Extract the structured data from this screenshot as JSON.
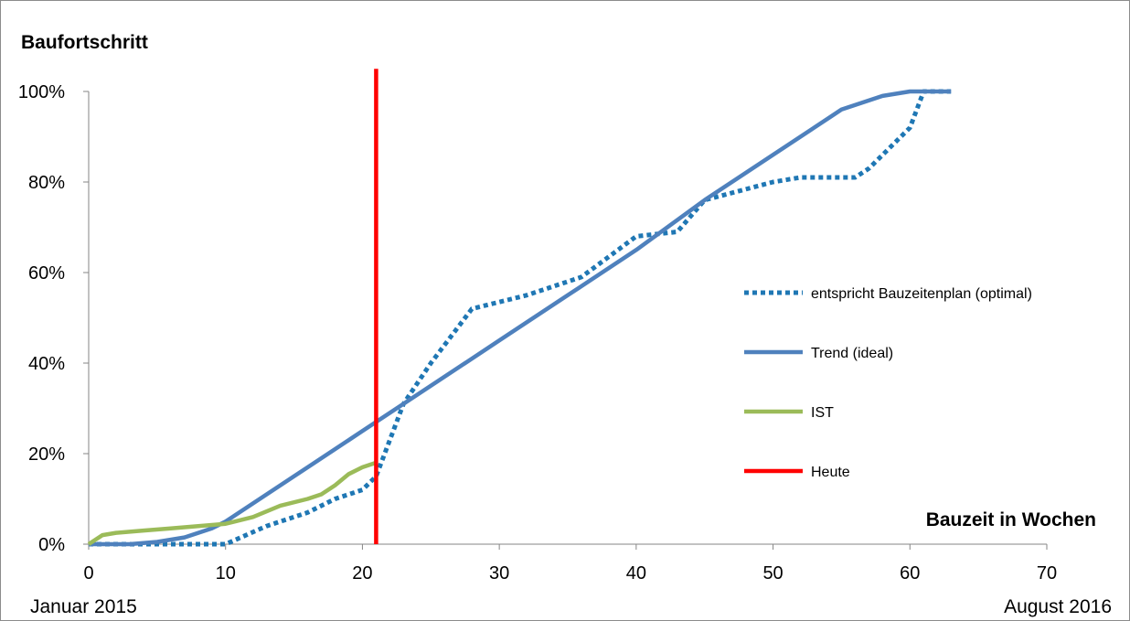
{
  "chart_data": {
    "type": "line",
    "title": "Baufortschritt",
    "xlabel": "Bauzeit in Wochen",
    "ylabel": "",
    "xlim": [
      0,
      70
    ],
    "ylim": [
      0,
      1
    ],
    "x_ticks": [
      0,
      10,
      20,
      30,
      40,
      50,
      60,
      70
    ],
    "y_ticks": [
      0,
      0.2,
      0.4,
      0.6,
      0.8,
      1.0
    ],
    "y_tick_labels": [
      "0%",
      "20%",
      "40%",
      "60%",
      "80%",
      "100%"
    ],
    "x_start_label": "Januar 2015",
    "x_end_label": "August 2016",
    "grid": false,
    "legend_position": "right",
    "series": [
      {
        "name": "entspricht Bauzeitenplan (optimal)",
        "color": "#1f77b4",
        "style": "dotted",
        "x": [
          0,
          5,
          10,
          13,
          16,
          18,
          20,
          21,
          22,
          23,
          25,
          28,
          32,
          36,
          40,
          43,
          45,
          50,
          52,
          56,
          57,
          60,
          61,
          62,
          63
        ],
        "y": [
          0,
          0,
          0,
          0.04,
          0.07,
          0.1,
          0.12,
          0.15,
          0.23,
          0.31,
          0.4,
          0.52,
          0.55,
          0.59,
          0.68,
          0.69,
          0.76,
          0.8,
          0.81,
          0.81,
          0.83,
          0.92,
          1.0,
          1.0,
          1.0
        ]
      },
      {
        "name": "Trend (ideal)",
        "color": "#4f81bd",
        "style": "solid",
        "x": [
          0,
          3,
          5,
          7,
          9,
          10,
          15,
          20,
          25,
          30,
          35,
          40,
          45,
          50,
          55,
          58,
          60,
          62,
          63
        ],
        "y": [
          0,
          0,
          0.005,
          0.015,
          0.035,
          0.05,
          0.15,
          0.25,
          0.35,
          0.45,
          0.55,
          0.65,
          0.76,
          0.86,
          0.96,
          0.99,
          1.0,
          1.0,
          1.0
        ]
      },
      {
        "name": "IST",
        "color": "#9bbb59",
        "style": "solid",
        "x": [
          0,
          1,
          2,
          4,
          6,
          8,
          10,
          12,
          14,
          16,
          17,
          18,
          19,
          20,
          21
        ],
        "y": [
          0,
          0.02,
          0.025,
          0.03,
          0.035,
          0.04,
          0.045,
          0.06,
          0.085,
          0.1,
          0.11,
          0.13,
          0.155,
          0.17,
          0.18
        ]
      },
      {
        "name": "Heute",
        "color": "#ff0000",
        "style": "solid",
        "x": [
          21,
          21
        ],
        "y": [
          0,
          1.05
        ]
      }
    ]
  }
}
